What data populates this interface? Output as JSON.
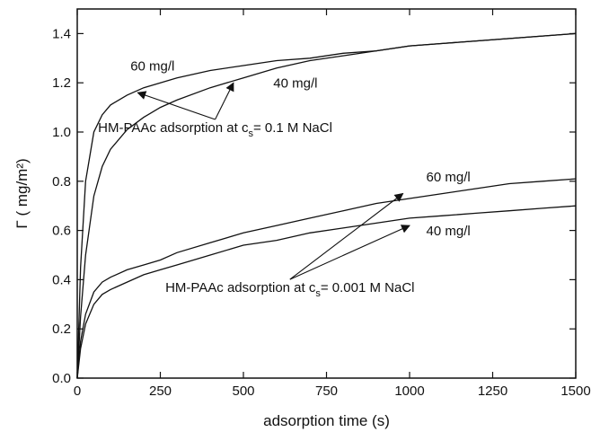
{
  "chart_data": {
    "type": "line",
    "title": "",
    "xlabel": "adsorption time (s)",
    "ylabel": "Γ ( mg/m²)",
    "xlim": [
      0,
      1500
    ],
    "ylim": [
      0,
      1.5
    ],
    "x_ticks": [
      0,
      250,
      500,
      750,
      1000,
      1250,
      1500
    ],
    "x_tick_labels": [
      "0",
      "250",
      "500",
      "750",
      "1000",
      "1250",
      "1500"
    ],
    "y_ticks": [
      0,
      0.2,
      0.4,
      0.6,
      0.8,
      1.0,
      1.2,
      1.4
    ],
    "y_tick_labels": [
      "0.0",
      "0.2",
      "0.4",
      "0.6",
      "0.8",
      "1.0",
      "1.2",
      "1.4"
    ],
    "grid": false,
    "legend": "none",
    "line_color": "#111111",
    "series": [
      {
        "x": [
          0,
          10,
          25,
          50,
          75,
          100,
          150,
          200,
          250,
          300,
          400,
          500,
          600,
          700,
          800,
          900,
          1000,
          1100,
          1200,
          1300,
          1400,
          1500
        ],
        "y": [
          0,
          0.45,
          0.8,
          1.0,
          1.07,
          1.11,
          1.15,
          1.18,
          1.2,
          1.22,
          1.25,
          1.27,
          1.29,
          1.3,
          1.32,
          1.33,
          1.35,
          1.36,
          1.37,
          1.38,
          1.39,
          1.4
        ]
      },
      {
        "x": [
          0,
          10,
          25,
          50,
          75,
          100,
          150,
          200,
          250,
          300,
          400,
          500,
          600,
          700,
          800,
          900,
          1000,
          1100,
          1200,
          1300,
          1400,
          1500
        ],
        "y": [
          0,
          0.25,
          0.5,
          0.74,
          0.86,
          0.93,
          1.01,
          1.06,
          1.1,
          1.13,
          1.18,
          1.22,
          1.26,
          1.29,
          1.31,
          1.33,
          1.35,
          1.36,
          1.37,
          1.38,
          1.39,
          1.4
        ]
      },
      {
        "x": [
          0,
          10,
          25,
          50,
          75,
          100,
          150,
          200,
          250,
          300,
          400,
          500,
          600,
          700,
          800,
          900,
          1000,
          1100,
          1200,
          1300,
          1400,
          1500
        ],
        "y": [
          0,
          0.15,
          0.26,
          0.35,
          0.39,
          0.41,
          0.44,
          0.46,
          0.48,
          0.51,
          0.55,
          0.59,
          0.62,
          0.65,
          0.68,
          0.71,
          0.73,
          0.75,
          0.77,
          0.79,
          0.8,
          0.81
        ]
      },
      {
        "x": [
          0,
          10,
          25,
          50,
          75,
          100,
          150,
          200,
          250,
          300,
          400,
          500,
          600,
          700,
          800,
          900,
          1000,
          1100,
          1200,
          1300,
          1400,
          1500
        ],
        "y": [
          0,
          0.12,
          0.22,
          0.3,
          0.34,
          0.36,
          0.39,
          0.42,
          0.44,
          0.46,
          0.5,
          0.54,
          0.56,
          0.59,
          0.61,
          0.63,
          0.65,
          0.66,
          0.67,
          0.68,
          0.69,
          0.7
        ]
      }
    ],
    "annotations": {
      "curve_labels": [
        {
          "text": "60 mg/l",
          "x": 160,
          "y": 1.25
        },
        {
          "text": "40 mg/l",
          "x": 590,
          "y": 1.18
        },
        {
          "text": "60 mg/l",
          "x": 1050,
          "y": 0.8
        },
        {
          "text": "40 mg/l",
          "x": 1050,
          "y": 0.58
        }
      ],
      "captions": [
        {
          "prefix": "HM-PAAc adsorption at c",
          "subscript": "s",
          "suffix": "= 0.1 M NaCl",
          "x": 415,
          "y": 1.0,
          "arrows": [
            {
              "x": 182,
              "y": 1.16
            },
            {
              "x": 470,
              "y": 1.2
            }
          ]
        },
        {
          "prefix": "HM-PAAc adsorption at c",
          "subscript": "s",
          "suffix": "= 0.001 M NaCl",
          "x": 640,
          "y": 0.35,
          "arrows": [
            {
              "x": 980,
              "y": 0.75
            },
            {
              "x": 1000,
              "y": 0.62
            }
          ]
        }
      ]
    }
  }
}
